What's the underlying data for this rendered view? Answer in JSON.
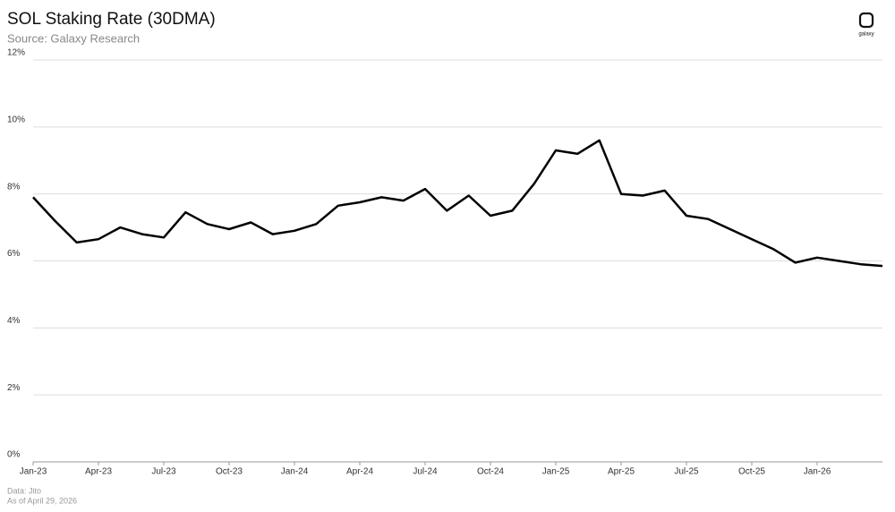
{
  "chart_data": {
    "type": "line",
    "title": "SOL Staking Rate (30DMA)",
    "subtitle": "Source: Galaxy Research",
    "logo": "galaxy",
    "notes": [
      "Data: Jito",
      "As of April 29, 2026"
    ],
    "x": [
      "Jan-23",
      "Feb-23",
      "Mar-23",
      "Apr-23",
      "May-23",
      "Jun-23",
      "Jul-23",
      "Aug-23",
      "Sep-23",
      "Oct-23",
      "Nov-23",
      "Dec-23",
      "Jan-24",
      "Feb-24",
      "Mar-24",
      "Apr-24",
      "May-24",
      "Jun-24",
      "Jul-24",
      "Aug-24",
      "Sep-24",
      "Oct-24",
      "Nov-24",
      "Dec-24",
      "Jan-25",
      "Feb-25",
      "Mar-25",
      "Apr-25",
      "May-25",
      "Jun-25",
      "Jul-25",
      "Aug-25",
      "Sep-25",
      "Oct-25",
      "Nov-25",
      "Dec-25",
      "Jan-26",
      "Feb-26",
      "Mar-26",
      "Apr-26"
    ],
    "xticks": [
      "Jan-23",
      "Apr-23",
      "Jul-23",
      "Oct-23",
      "Jan-24",
      "Apr-24",
      "Jul-24",
      "Oct-24",
      "Jan-25",
      "Apr-25",
      "Jul-25",
      "Oct-25",
      "Jan-26"
    ],
    "series": [
      {
        "name": "SOL Staking Rate",
        "color": "#000000",
        "values": [
          7.9,
          7.2,
          6.55,
          6.65,
          7.0,
          6.8,
          6.7,
          7.45,
          7.1,
          6.95,
          7.15,
          6.8,
          6.9,
          7.1,
          7.65,
          7.75,
          7.9,
          7.8,
          8.15,
          7.5,
          7.95,
          7.35,
          7.5,
          8.3,
          9.3,
          9.2,
          9.6,
          8.0,
          7.95,
          8.1,
          7.35,
          7.25,
          6.95,
          6.65,
          6.35,
          5.95,
          6.1,
          6.0,
          5.9,
          5.85
        ]
      }
    ],
    "ylim": [
      0,
      12
    ],
    "yticks": [
      {
        "value": 0,
        "label": "0%"
      },
      {
        "value": 2,
        "label": "2%"
      },
      {
        "value": 4,
        "label": "4%"
      },
      {
        "value": 6,
        "label": "6%"
      },
      {
        "value": 8,
        "label": "8%"
      },
      {
        "value": 10,
        "label": "10%"
      },
      {
        "value": 12,
        "label": "12%"
      }
    ],
    "grid": true
  }
}
